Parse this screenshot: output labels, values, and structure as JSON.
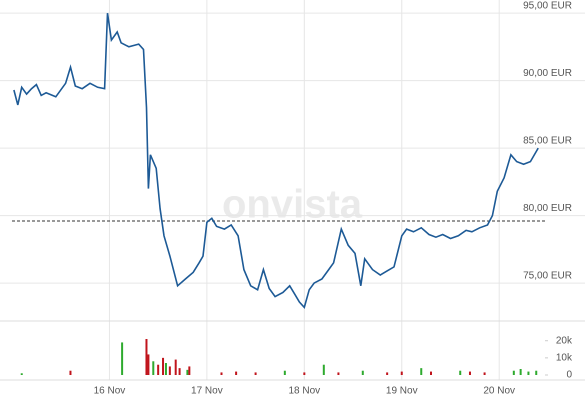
{
  "chart_data": [
    {
      "type": "line",
      "watermark": "onvista",
      "xlim": [
        15.0,
        20.47
      ],
      "xticks": [
        {
          "value": 16,
          "label": "16 Nov"
        },
        {
          "value": 17,
          "label": "17 Nov"
        },
        {
          "value": 18,
          "label": "18 Nov"
        },
        {
          "value": 19,
          "label": "19 Nov"
        },
        {
          "value": 20,
          "label": "20 Nov"
        }
      ],
      "ylim": [
        72.6,
        95.6
      ],
      "yticks": [
        {
          "value": 75,
          "label": "75,00 EUR"
        },
        {
          "value": 80,
          "label": "80,00 EUR"
        },
        {
          "value": 85,
          "label": "85,00 EUR"
        },
        {
          "value": 90,
          "label": "90,00 EUR"
        },
        {
          "value": 95,
          "label": "95,00 EUR"
        }
      ],
      "reference_value": 79.6,
      "grid": true,
      "x": [
        15.02,
        15.06,
        15.1,
        15.15,
        15.2,
        15.25,
        15.3,
        15.35,
        15.45,
        15.55,
        15.6,
        15.65,
        15.72,
        15.8,
        15.88,
        15.95,
        15.98,
        16.02,
        16.08,
        16.12,
        16.2,
        16.3,
        16.35,
        16.38,
        16.4,
        16.42,
        16.48,
        16.52,
        16.56,
        16.62,
        16.7,
        16.78,
        16.86,
        16.92,
        16.96,
        17.0,
        17.05,
        17.1,
        17.18,
        17.25,
        17.32,
        17.38,
        17.45,
        17.52,
        17.58,
        17.64,
        17.7,
        17.78,
        17.85,
        17.9,
        17.95,
        18.0,
        18.05,
        18.1,
        18.18,
        18.25,
        18.3,
        18.38,
        18.45,
        18.52,
        18.58,
        18.62,
        18.7,
        18.78,
        18.85,
        18.92,
        19.0,
        19.05,
        19.12,
        19.2,
        19.28,
        19.35,
        19.42,
        19.5,
        19.58,
        19.66,
        19.72,
        19.8,
        19.88,
        19.93,
        19.98,
        20.05,
        20.12,
        20.18,
        20.25,
        20.32,
        20.4
      ],
      "series": [
        {
          "color": "#1d5a96",
          "values": [
            89.3,
            88.2,
            89.5,
            89.0,
            89.4,
            89.7,
            88.9,
            89.1,
            88.8,
            89.8,
            91.0,
            89.6,
            89.4,
            89.8,
            89.5,
            89.4,
            95.0,
            93.0,
            93.6,
            92.8,
            92.5,
            92.7,
            92.3,
            88.0,
            82.0,
            84.5,
            83.5,
            80.5,
            78.5,
            77.0,
            74.8,
            75.3,
            75.8,
            76.5,
            77.0,
            79.5,
            79.8,
            79.2,
            79.0,
            79.3,
            78.5,
            76.0,
            74.8,
            74.5,
            76.0,
            74.6,
            74.0,
            74.3,
            74.8,
            74.2,
            73.6,
            73.2,
            74.5,
            75.0,
            75.3,
            76.0,
            76.5,
            79.0,
            77.8,
            77.2,
            74.8,
            76.8,
            76.0,
            75.6,
            75.9,
            76.2,
            78.5,
            79.0,
            78.8,
            79.1,
            78.6,
            78.4,
            78.6,
            78.3,
            78.5,
            78.9,
            78.8,
            79.1,
            79.3,
            80.0,
            81.8,
            82.8,
            84.5,
            84.0,
            83.8,
            84.0,
            85.0
          ]
        }
      ]
    },
    {
      "type": "bar",
      "ylim": [
        0,
        28000
      ],
      "yticks": [
        0,
        {
          "value": 10000,
          "label": "10k"
        },
        {
          "value": 20000,
          "label": "20k"
        }
      ],
      "x": [
        15.1,
        15.6,
        16.13,
        16.38,
        16.4,
        16.45,
        16.5,
        16.55,
        16.58,
        16.62,
        16.68,
        16.72,
        16.8,
        16.82,
        17.15,
        17.3,
        17.5,
        17.8,
        18.0,
        18.2,
        18.35,
        18.6,
        18.85,
        19.0,
        19.2,
        19.3,
        19.6,
        19.7,
        19.85,
        20.15,
        20.22,
        20.3,
        20.38
      ],
      "values": [
        1000,
        2500,
        19000,
        21000,
        12000,
        8000,
        6000,
        10000,
        7000,
        5000,
        9000,
        4000,
        3000,
        5000,
        1500,
        2000,
        1500,
        2500,
        1500,
        6000,
        1500,
        2500,
        1500,
        2000,
        4000,
        2000,
        2500,
        2000,
        1500,
        2500,
        3500,
        2000,
        2500
      ],
      "colors": [
        "#2eaa2e",
        "#c0141c",
        "#2eaa2e",
        "#c0141c",
        "#c0141c",
        "#2eaa2e",
        "#c0141c",
        "#c0141c",
        "#2eaa2e",
        "#c0141c",
        "#c0141c",
        "#c0141c",
        "#2eaa2e",
        "#c0141c",
        "#c0141c",
        "#c0141c",
        "#c0141c",
        "#2eaa2e",
        "#c0141c",
        "#2eaa2e",
        "#c0141c",
        "#2eaa2e",
        "#c0141c",
        "#c0141c",
        "#2eaa2e",
        "#c0141c",
        "#2eaa2e",
        "#c0141c",
        "#c0141c",
        "#2eaa2e",
        "#2eaa2e",
        "#2eaa2e",
        "#2eaa2e"
      ]
    }
  ]
}
